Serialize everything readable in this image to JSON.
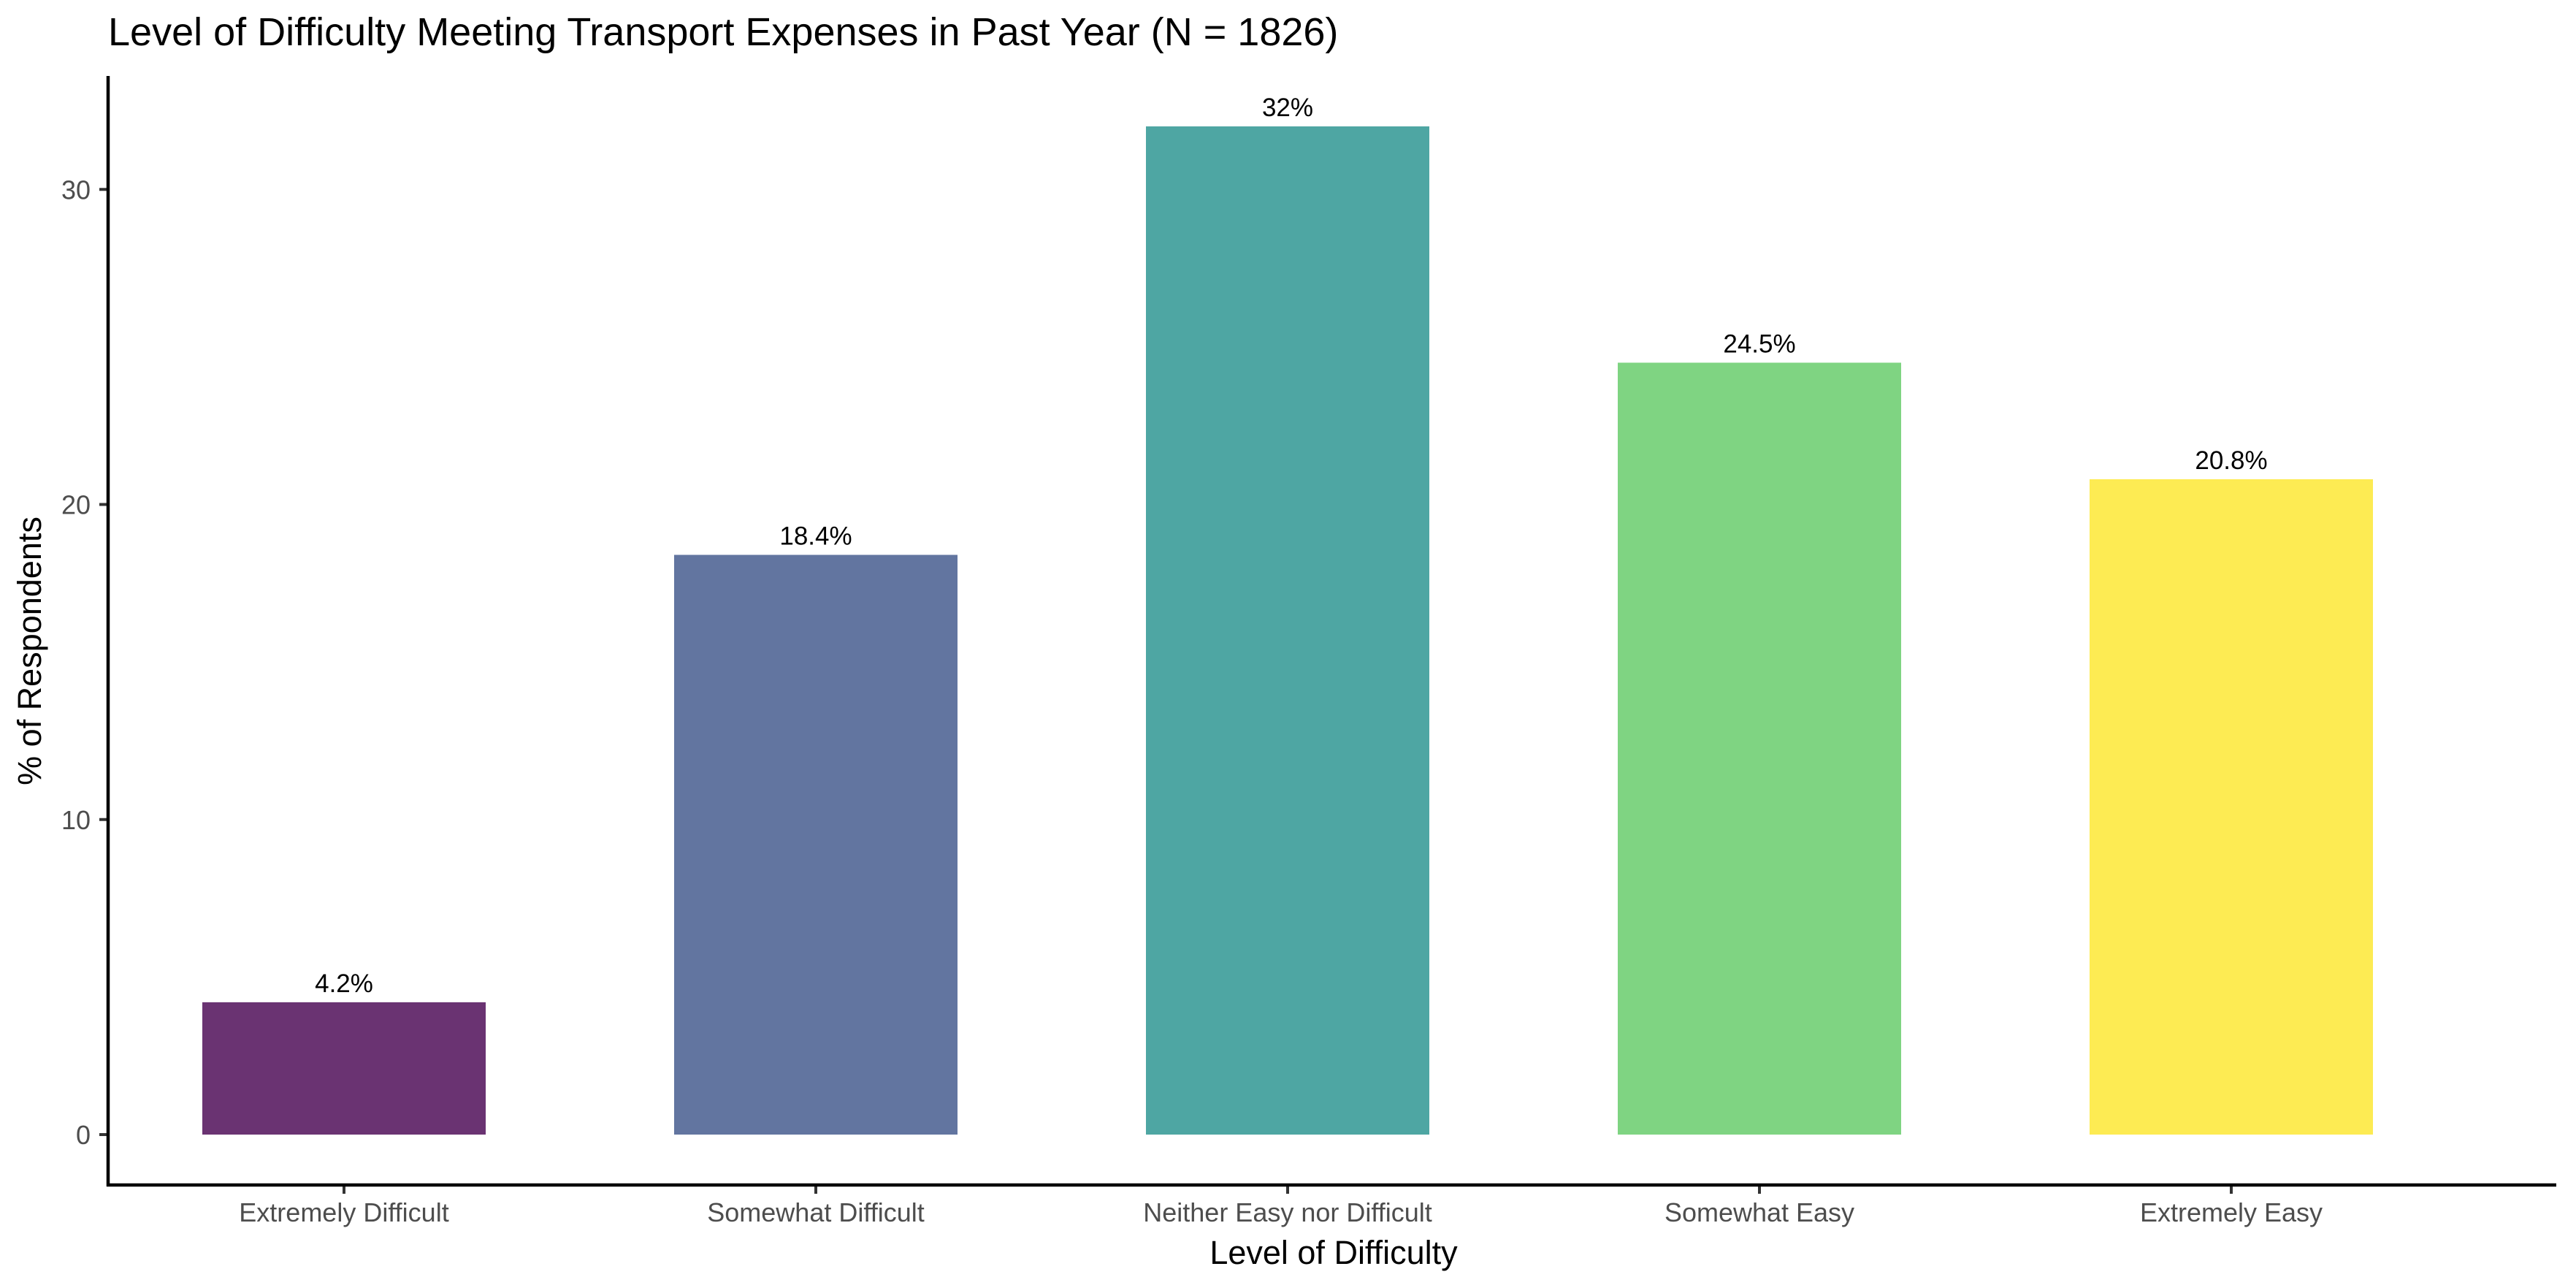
{
  "chart_data": {
    "type": "bar",
    "title": "Level of Difficulty Meeting Transport Expenses in Past Year (N = 1826)",
    "xlabel": "Level of Difficulty",
    "ylabel": "% of Respondents",
    "categories": [
      "Extremely Difficult",
      "Somewhat Difficult",
      "Neither Easy nor Difficult",
      "Somewhat Easy",
      "Extremely Easy"
    ],
    "values": [
      4.2,
      18.4,
      32,
      24.5,
      20.8
    ],
    "data_labels": [
      "4.2%",
      "18.4%",
      "32%",
      "24.5%",
      "20.8%"
    ],
    "colors": [
      "#6a3372",
      "#6275a0",
      "#4ea6a3",
      "#7fd482",
      "#fdeb53"
    ],
    "y_ticks": [
      0,
      10,
      20,
      30
    ],
    "y_tick_labels": [
      "0",
      "10",
      "20",
      "30"
    ],
    "ylim": [
      -1.6,
      33.6
    ],
    "grid": false,
    "legend": "none"
  }
}
